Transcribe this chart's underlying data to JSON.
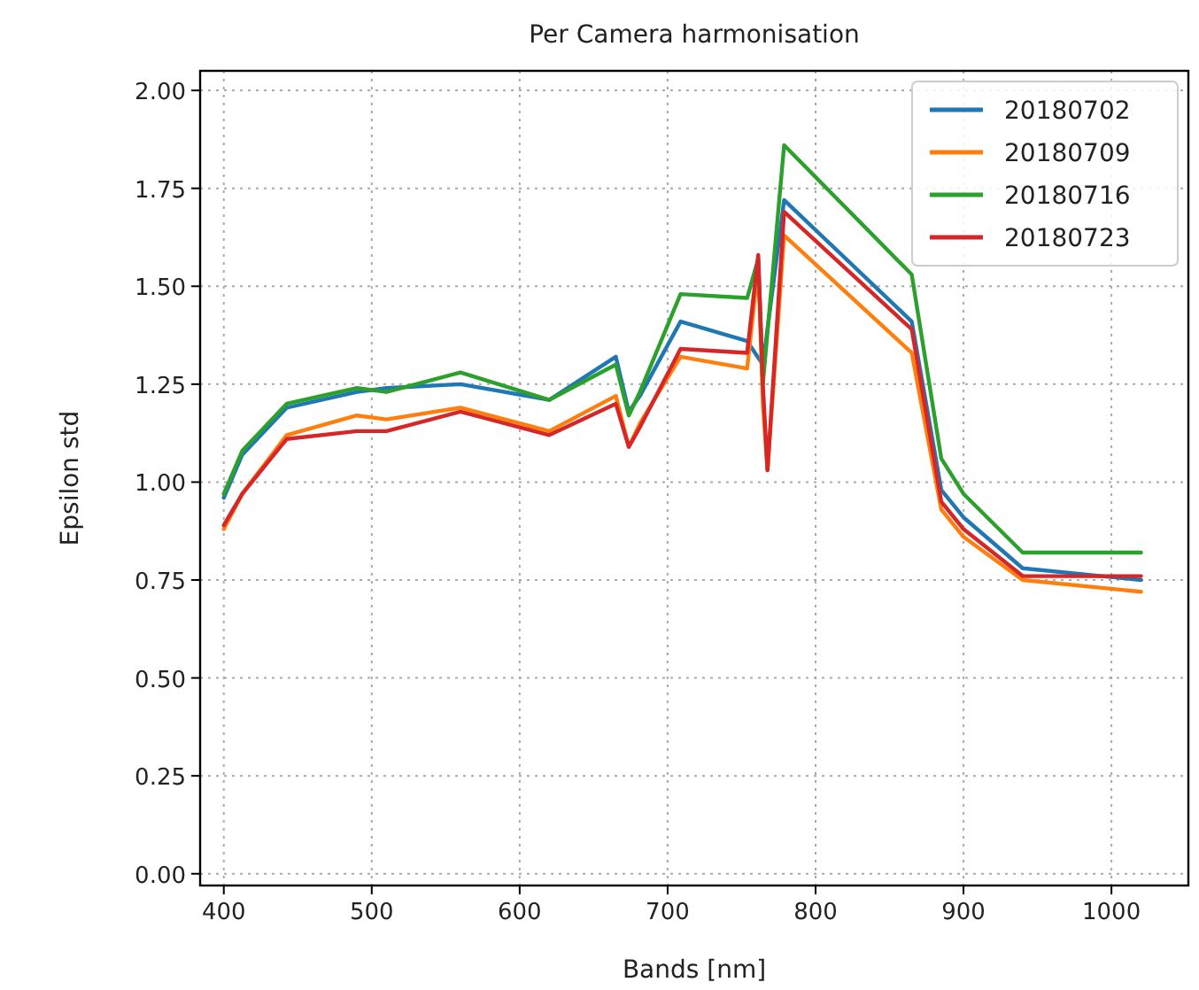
{
  "chart_data": {
    "type": "line",
    "subtitle": "Per Camera harmonisation",
    "xlabel": "Bands [nm]",
    "ylabel": "Epsilon std",
    "x": [
      400,
      412.5,
      442.5,
      490,
      510,
      560,
      620,
      665,
      673.75,
      681.25,
      708.75,
      753.75,
      761.25,
      764.375,
      767.5,
      778.75,
      865,
      885,
      900,
      940,
      1020
    ],
    "series": [
      {
        "name": "20180702",
        "color": "#1f77b4",
        "values": [
          0.96,
          1.07,
          1.19,
          1.23,
          1.24,
          1.25,
          1.21,
          1.32,
          1.18,
          1.22,
          1.41,
          1.36,
          null,
          1.3,
          null,
          1.72,
          1.41,
          0.98,
          0.91,
          0.78,
          0.75
        ]
      },
      {
        "name": "20180709",
        "color": "#ff7f0e",
        "values": [
          0.88,
          0.97,
          1.12,
          1.17,
          1.16,
          1.19,
          1.13,
          1.22,
          1.09,
          1.15,
          1.32,
          1.29,
          1.55,
          1.2,
          1.03,
          1.63,
          1.33,
          0.93,
          0.86,
          0.75,
          0.72
        ]
      },
      {
        "name": "20180716",
        "color": "#2ca02c",
        "values": [
          0.97,
          1.08,
          1.2,
          1.24,
          1.23,
          1.28,
          1.21,
          1.3,
          1.17,
          1.23,
          1.48,
          1.47,
          1.57,
          1.25,
          null,
          1.86,
          1.53,
          1.06,
          0.97,
          0.82,
          0.82
        ]
      },
      {
        "name": "20180723",
        "color": "#d62728",
        "values": [
          0.89,
          0.97,
          1.11,
          1.13,
          1.13,
          1.18,
          1.12,
          1.2,
          1.09,
          1.14,
          1.34,
          1.33,
          1.58,
          1.25,
          1.03,
          1.69,
          1.39,
          0.95,
          0.88,
          0.76,
          0.76
        ]
      }
    ],
    "xlim": [
      384,
      1052
    ],
    "ylim": [
      -0.03,
      2.05
    ],
    "xticks": [
      400,
      500,
      600,
      700,
      800,
      900,
      1000
    ],
    "yticks": [
      {
        "value": 0,
        "label": "0.00"
      },
      {
        "value": 0.25,
        "label": "0.25"
      },
      {
        "value": 0.5,
        "label": "0.50"
      },
      {
        "value": 0.75,
        "label": "0.75"
      },
      {
        "value": 1,
        "label": "1.00"
      },
      {
        "value": 1.25,
        "label": "1.25"
      },
      {
        "value": 1.5,
        "label": "1.50"
      },
      {
        "value": 1.75,
        "label": "1.75"
      },
      {
        "value": 2,
        "label": "2.00"
      }
    ],
    "grid": true,
    "legend": "top right",
    "line_style": "solid",
    "marker": "none"
  }
}
